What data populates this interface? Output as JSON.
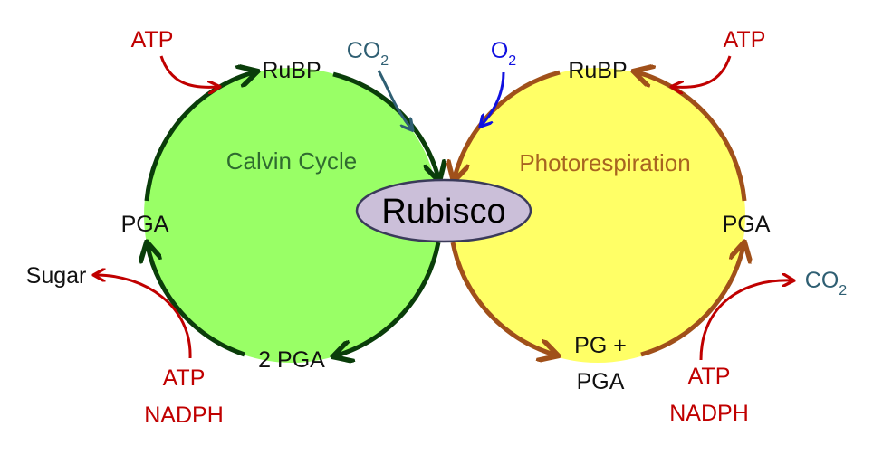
{
  "diagram": {
    "colors": {
      "calvin_fill": "#99ff66",
      "calvin_stroke": "#0a3d0a",
      "photo_fill": "#ffff66",
      "photo_stroke": "#a0501a",
      "rubisco_fill": "#cbbfd9",
      "rubisco_stroke": "#3a3a5a",
      "energy_red": "#c00000",
      "co2_teal": "#2f5f73",
      "o2_blue": "#1010e0"
    },
    "calvin_cycle": {
      "title": "Calvin Cycle",
      "rubp": "RuBP",
      "pga": "PGA",
      "two_pga": "2 PGA",
      "co2_main": "CO",
      "co2_sub": "2",
      "atp_top": "ATP",
      "sugar": "Sugar",
      "atp_bottom": "ATP",
      "nadph_bottom": "NADPH"
    },
    "photorespiration": {
      "title": "Photorespiration",
      "rubp": "RuBP",
      "pga": "PGA",
      "pg_plus": "PG +",
      "pg_pga": "PGA",
      "o2_main": "O",
      "o2_sub": "2",
      "atp_top": "ATP",
      "co2_main": "CO",
      "co2_sub": "2",
      "atp_bottom": "ATP",
      "nadph_bottom": "NADPH"
    },
    "enzyme": "Rubisco"
  }
}
